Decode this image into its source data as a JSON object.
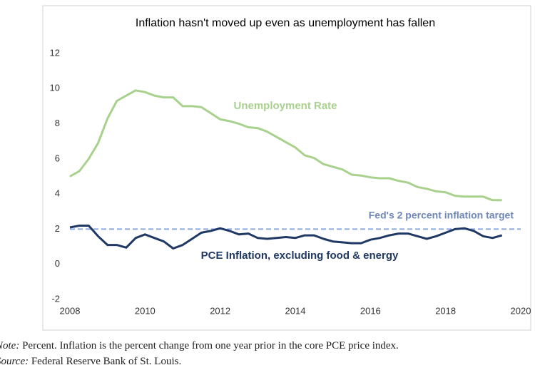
{
  "chart_data": {
    "type": "line",
    "title": "Inflation hasn't moved up even as unemployment has fallen",
    "x": [
      2008,
      2008.25,
      2008.5,
      2008.75,
      2009,
      2009.25,
      2009.5,
      2009.75,
      2010,
      2010.25,
      2010.5,
      2010.75,
      2011,
      2011.25,
      2011.5,
      2011.75,
      2012,
      2012.25,
      2012.5,
      2012.75,
      2013,
      2013.25,
      2013.5,
      2013.75,
      2014,
      2014.25,
      2014.5,
      2014.75,
      2015,
      2015.25,
      2015.5,
      2015.75,
      2016,
      2016.25,
      2016.5,
      2016.75,
      2017,
      2017.25,
      2017.5,
      2017.75,
      2018,
      2018.25,
      2018.5,
      2018.75,
      2019,
      2019.25,
      2019.5
    ],
    "series": [
      {
        "name": "Unemployment Rate",
        "color": "#a9d18e",
        "values": [
          5.0,
          5.3,
          6.0,
          6.9,
          8.3,
          9.3,
          9.6,
          9.9,
          9.8,
          9.6,
          9.5,
          9.5,
          9.0,
          9.0,
          8.95,
          8.6,
          8.25,
          8.15,
          8.0,
          7.8,
          7.75,
          7.55,
          7.25,
          6.95,
          6.65,
          6.2,
          6.05,
          5.7,
          5.55,
          5.4,
          5.1,
          5.05,
          4.95,
          4.9,
          4.9,
          4.75,
          4.65,
          4.4,
          4.3,
          4.15,
          4.1,
          3.9,
          3.85,
          3.85,
          3.85,
          3.65,
          3.65
        ]
      },
      {
        "name": "PCE Inflation, excluding food & energy",
        "color": "#203864",
        "values": [
          2.1,
          2.2,
          2.2,
          1.6,
          1.1,
          1.1,
          0.95,
          1.5,
          1.7,
          1.5,
          1.3,
          0.9,
          1.1,
          1.45,
          1.8,
          1.9,
          2.05,
          1.9,
          1.7,
          1.75,
          1.5,
          1.45,
          1.5,
          1.55,
          1.5,
          1.65,
          1.65,
          1.45,
          1.3,
          1.25,
          1.2,
          1.2,
          1.4,
          1.5,
          1.65,
          1.75,
          1.75,
          1.6,
          1.45,
          1.6,
          1.8,
          2.0,
          2.05,
          1.9,
          1.6,
          1.5,
          1.65
        ]
      }
    ],
    "target": {
      "label": "Fed's 2 percent inflation target",
      "value": 2,
      "color": "#8faadc"
    },
    "xlim": [
      2008,
      2020
    ],
    "xticks": [
      2008,
      2010,
      2012,
      2014,
      2016,
      2018,
      2020
    ],
    "ylim": [
      -2,
      12
    ],
    "yticks": [
      -2,
      0,
      2,
      4,
      6,
      8,
      10,
      12
    ],
    "grid": false
  },
  "notes": [
    {
      "label": "Note:",
      "text": "Percent. Inflation is the percent change from one year prior in the core PCE price index."
    },
    {
      "label": "Source:",
      "text": "Federal Reserve Bank of St. Louis."
    }
  ]
}
